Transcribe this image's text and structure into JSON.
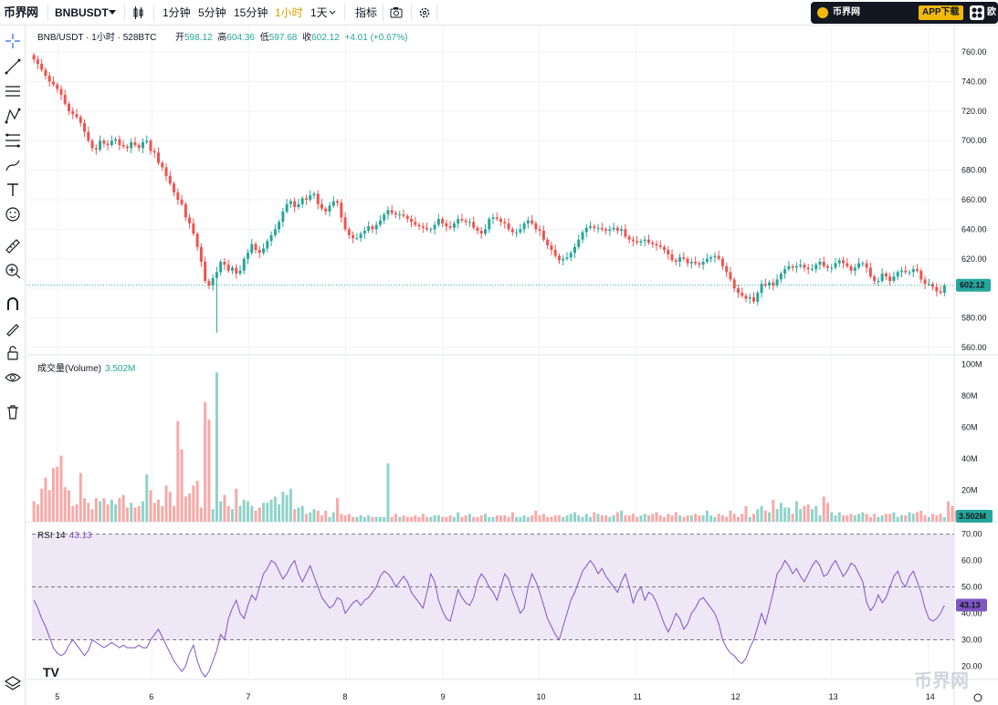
{
  "topbar": {
    "logo": "币界网",
    "symbol": "BNBUSDT",
    "intervals": [
      "1分钟",
      "5分钟",
      "15分钟",
      "1小时",
      "1天"
    ],
    "active_interval": "1小时",
    "indicators_label": "指标",
    "banner_name": "币界网",
    "banner_app": "APP下载",
    "banner_extra": "欧"
  },
  "legend": {
    "title": "BNB/USDT · 1小时 · 528BTC",
    "open_label": "开",
    "open": "598.12",
    "high_label": "高",
    "high": "604.36",
    "low_label": "低",
    "low": "597.68",
    "close_label": "收",
    "close": "602.12",
    "change": "+4.01 (+0.67%)"
  },
  "volume_legend": {
    "label": "成交量(Volume)",
    "value": "3.502M"
  },
  "rsi_legend": {
    "label": "RSI 14",
    "value": "43.13"
  },
  "watermark": "币界网",
  "colors": {
    "up": "#26a69a",
    "down": "#ef5350",
    "vol_up": "#8fd3c9",
    "vol_down": "#f7a9a8",
    "rsi": "#7e57c2",
    "rsi_band": "#ede7f6"
  },
  "chart_data": [
    {
      "type": "candlestick",
      "title": "BNB/USDT · 1小时 · 528BTC",
      "y_ticks": [
        "760.00",
        "740.00",
        "720.00",
        "700.00",
        "680.00",
        "660.00",
        "640.00",
        "620.00",
        "600.00",
        "580.00",
        "560.00"
      ],
      "ylim": [
        555,
        765
      ],
      "last_price": "602.12",
      "x_ticks": [
        "5",
        "6",
        "7",
        "8",
        "9",
        "10",
        "11",
        "12",
        "13",
        "14"
      ],
      "closes": [
        755,
        752,
        748,
        744,
        740,
        738,
        735,
        731,
        725,
        720,
        718,
        716,
        712,
        706,
        700,
        695,
        694,
        700,
        698,
        697,
        700,
        701,
        697,
        696,
        695,
        699,
        697,
        695,
        699,
        700,
        693,
        692,
        685,
        682,
        676,
        671,
        665,
        660,
        657,
        648,
        644,
        637,
        628,
        618,
        605,
        602,
        607,
        611,
        618,
        616,
        612,
        614,
        610,
        612,
        620,
        624,
        630,
        626,
        624,
        627,
        632,
        636,
        640,
        645,
        652,
        657,
        659,
        655,
        657,
        661,
        660,
        663,
        664,
        657,
        654,
        652,
        656,
        659,
        658,
        648,
        640,
        636,
        634,
        634,
        637,
        639,
        642,
        640,
        643,
        646,
        650,
        653,
        651,
        650,
        650,
        649,
        647,
        645,
        643,
        642,
        641,
        640,
        640,
        643,
        647,
        644,
        642,
        641,
        644,
        647,
        646,
        645,
        645,
        641,
        639,
        637,
        640,
        647,
        648,
        647,
        645,
        644,
        640,
        638,
        638,
        640,
        644,
        646,
        644,
        640,
        639,
        633,
        629,
        626,
        622,
        619,
        620,
        621,
        624,
        628,
        633,
        638,
        641,
        642,
        641,
        641,
        640,
        639,
        640,
        641,
        639,
        640,
        635,
        633,
        632,
        631,
        632,
        633,
        631,
        630,
        629,
        628,
        626,
        623,
        619,
        618,
        621,
        620,
        617,
        618,
        617,
        616,
        618,
        620,
        621,
        622,
        620,
        615,
        611,
        606,
        600,
        597,
        595,
        593,
        594,
        591,
        597,
        603,
        602,
        604,
        602,
        606,
        610,
        613,
        615,
        614,
        615,
        616,
        614,
        613,
        613,
        616,
        618,
        615,
        614,
        614,
        617,
        619,
        617,
        615,
        612,
        614,
        617,
        617,
        614,
        608,
        605,
        605,
        610,
        608,
        605,
        608,
        611,
        612,
        611,
        611,
        613,
        612,
        606,
        603,
        603,
        601,
        598,
        597,
        602
      ],
      "volumes": [
        13,
        11,
        21,
        28,
        20,
        34,
        35,
        42,
        22,
        20,
        10,
        11,
        31,
        15,
        12,
        8,
        15,
        13,
        15,
        11,
        14,
        11,
        15,
        17,
        9,
        12,
        9,
        10,
        13,
        30,
        20,
        12,
        14,
        10,
        23,
        19,
        10,
        64,
        46,
        16,
        18,
        23,
        26,
        9,
        76,
        65,
        8,
        95,
        13,
        17,
        10,
        8,
        21,
        10,
        14,
        13,
        10,
        7,
        9,
        12,
        12,
        14,
        16,
        11,
        19,
        17,
        21,
        8,
        9,
        10,
        5,
        6,
        8,
        7,
        4,
        7,
        3,
        6,
        15,
        5,
        4,
        5,
        3,
        3,
        4,
        3,
        4,
        3,
        3,
        3,
        3,
        37,
        3,
        5,
        3,
        4,
        3,
        3,
        4,
        3,
        5,
        3,
        3,
        4,
        4,
        3,
        3,
        4,
        3,
        6,
        3,
        4,
        5,
        3,
        3,
        4,
        5,
        3,
        3,
        4,
        4,
        4,
        3,
        6,
        3,
        3,
        4,
        3,
        4,
        7,
        4,
        5,
        3,
        3,
        4,
        4,
        3,
        4,
        5,
        6,
        4,
        3,
        5,
        3,
        6,
        5,
        4,
        4,
        3,
        4,
        6,
        7,
        4,
        4,
        5,
        3,
        4,
        5,
        4,
        5,
        6,
        4,
        3,
        5,
        4,
        6,
        4,
        3,
        4,
        4,
        5,
        4,
        4,
        7,
        4,
        3,
        5,
        4,
        3,
        7,
        5,
        3,
        5,
        10,
        3,
        5,
        8,
        10,
        7,
        6,
        14,
        8,
        12,
        9,
        9,
        5,
        13,
        8,
        10,
        11,
        8,
        10,
        4,
        16,
        12,
        6,
        4,
        6,
        4,
        4,
        5,
        4,
        5,
        6,
        5,
        3,
        5,
        3,
        4,
        5,
        5,
        6,
        3,
        4,
        4,
        6,
        5,
        6,
        7,
        4,
        3,
        5,
        4,
        5,
        3,
        13,
        10,
        7,
        4,
        5,
        3.5
      ],
      "volume_y_ticks": [
        "100M",
        "80M",
        "60M",
        "40M",
        "20M"
      ],
      "volume_last": "3.502M",
      "rsi": [
        45,
        42,
        38,
        35,
        31,
        27,
        25,
        24,
        25,
        28,
        30,
        28,
        26,
        24,
        26,
        30,
        29,
        28,
        27,
        28,
        29,
        28,
        27,
        28,
        27,
        27,
        27,
        28,
        27,
        27,
        30,
        32,
        34,
        31,
        28,
        25,
        22,
        20,
        18,
        20,
        25,
        28,
        22,
        18,
        16,
        18,
        22,
        26,
        32,
        30,
        38,
        42,
        45,
        40,
        38,
        43,
        47,
        45,
        50,
        55,
        57,
        60,
        59,
        56,
        53,
        55,
        58,
        60,
        55,
        52,
        55,
        58,
        54,
        50,
        46,
        44,
        42,
        43,
        46,
        45,
        40,
        42,
        44,
        45,
        43,
        45,
        46,
        48,
        50,
        54,
        56,
        55,
        53,
        50,
        52,
        54,
        52,
        48,
        46,
        44,
        42,
        48,
        55,
        52,
        45,
        41,
        38,
        37,
        43,
        49,
        46,
        44,
        43,
        46,
        52,
        55,
        53,
        50,
        48,
        45,
        50,
        55,
        53,
        48,
        44,
        40,
        42,
        50,
        55,
        52,
        48,
        43,
        38,
        35,
        32,
        30,
        35,
        40,
        45,
        48,
        52,
        56,
        58,
        60,
        58,
        55,
        57,
        54,
        52,
        50,
        48,
        52,
        55,
        50,
        44,
        48,
        50,
        45,
        48,
        47,
        44,
        40,
        36,
        33,
        36,
        40,
        38,
        34,
        36,
        40,
        42,
        45,
        46,
        44,
        42,
        40,
        36,
        30,
        27,
        25,
        24,
        22,
        21,
        23,
        27,
        30,
        35,
        40,
        36,
        42,
        48,
        55,
        57,
        60,
        58,
        55,
        57,
        54,
        52,
        55,
        58,
        60,
        58,
        54,
        55,
        58,
        60,
        57,
        54,
        56,
        59,
        58,
        55,
        52,
        44,
        41,
        43,
        47,
        44,
        46,
        50,
        54,
        56,
        52,
        50,
        54,
        56,
        52,
        48,
        42,
        38,
        37,
        38,
        40,
        43
      ],
      "rsi_y_ticks": [
        "70.00",
        "60.00",
        "50.00",
        "40.00",
        "30.00",
        "20.00"
      ],
      "rsi_last": "43.13",
      "rsi_levels": [
        70,
        50,
        30
      ]
    }
  ]
}
